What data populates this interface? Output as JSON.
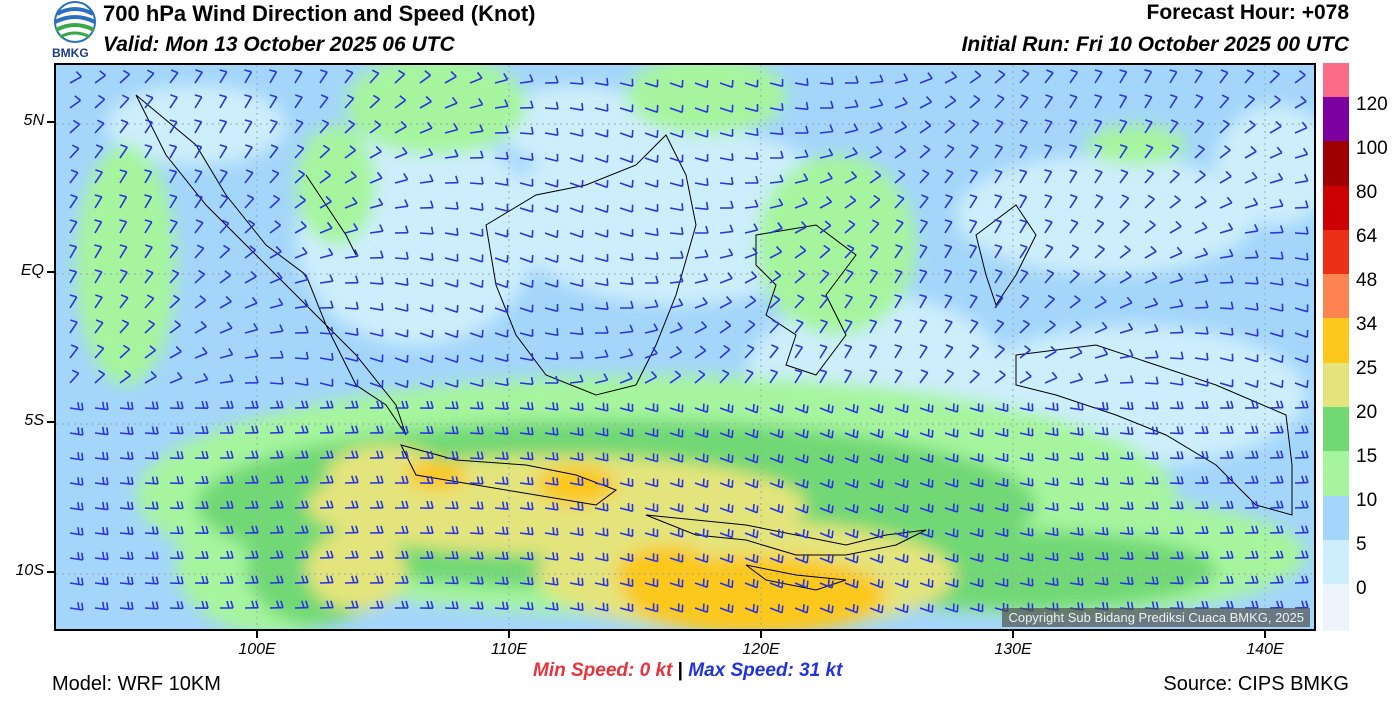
{
  "header": {
    "title": "700 hPa Wind Direction and Speed (Knot)",
    "valid": "Valid: Mon 13 October 2025 06 UTC",
    "forecast_hour": "Forecast Hour: +078",
    "initial_run": "Initial Run: Fri 10 October 2025 00 UTC",
    "logo_text": "BMKG"
  },
  "map": {
    "lat_labels": [
      "5N",
      "EQ",
      "5S",
      "10S"
    ],
    "lon_labels": [
      "100E",
      "110E",
      "120E",
      "130E",
      "140E"
    ],
    "copyright": "Copyright Sub Bidang Prediksi Cuaca BMKG, 2025"
  },
  "colorbar": {
    "labels": [
      "0",
      "5",
      "10",
      "15",
      "20",
      "25",
      "34",
      "48",
      "64",
      "80",
      "100",
      "120"
    ],
    "colors": [
      "#eef4fb",
      "#cdeefc",
      "#a4d6fb",
      "#a6f59e",
      "#71d874",
      "#e4e47c",
      "#fcc81c",
      "#fc8450",
      "#ec3018",
      "#cc0000",
      "#9c0000",
      "#7c00a0",
      "#fc6c88"
    ]
  },
  "speeds": {
    "min": "Min Speed:  0 kt",
    "separator": "|",
    "max": "Max Speed:  31 kt"
  },
  "footer": {
    "model": "Model: WRF 10KM",
    "source": "Source: CIPS BMKG"
  }
}
